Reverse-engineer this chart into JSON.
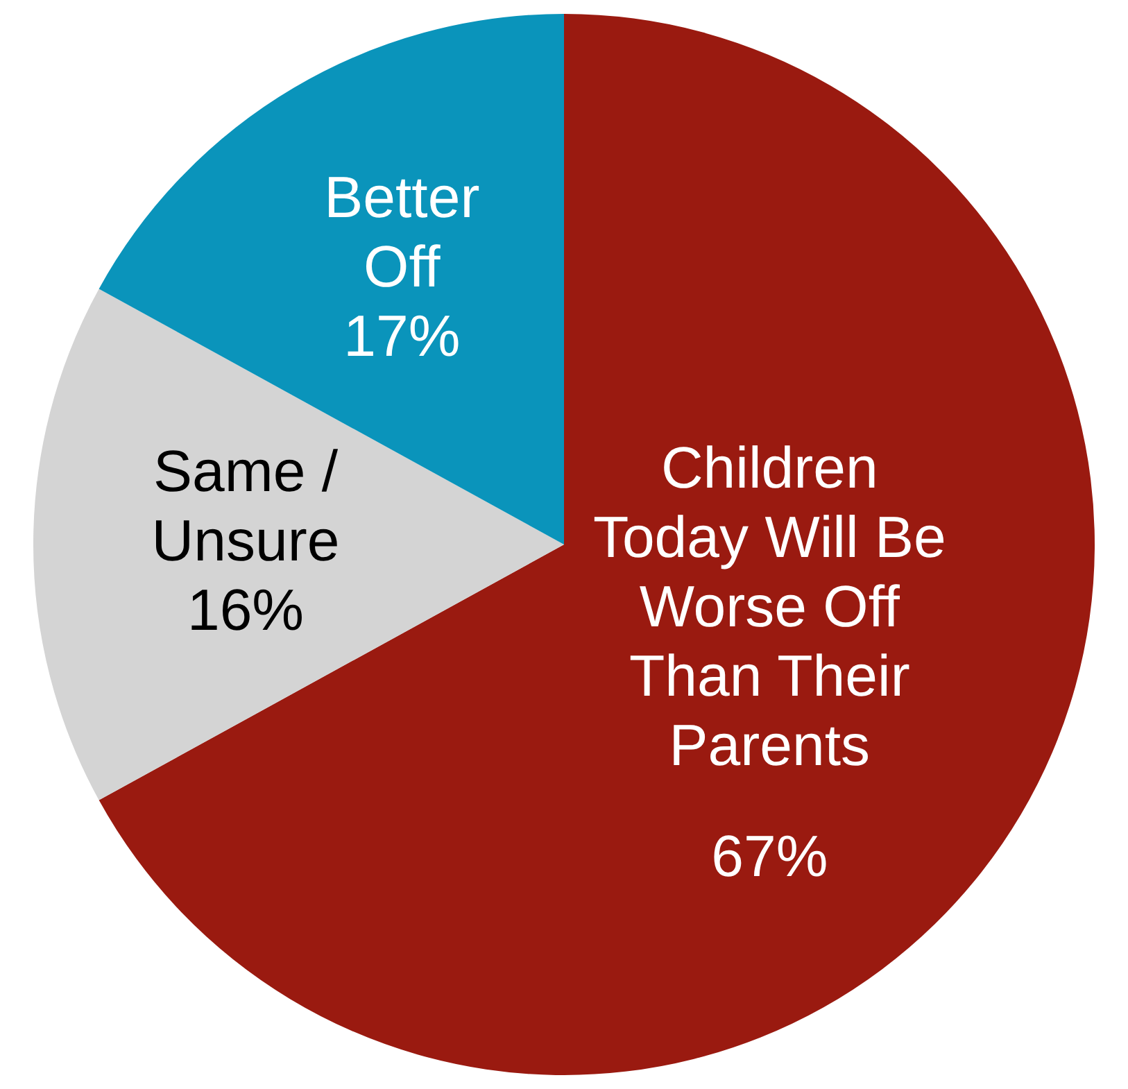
{
  "chart_data": {
    "type": "pie",
    "categories": [
      "Children Today Will Be Worse Off Than Their Parents",
      "Same / Unsure",
      "Better Off"
    ],
    "values": [
      67,
      16,
      17
    ],
    "colors": [
      "#9a1a10",
      "#d4d4d4",
      "#0a94bb"
    ],
    "value_labels": [
      "67%",
      "16%",
      "17%"
    ],
    "legend": false
  }
}
